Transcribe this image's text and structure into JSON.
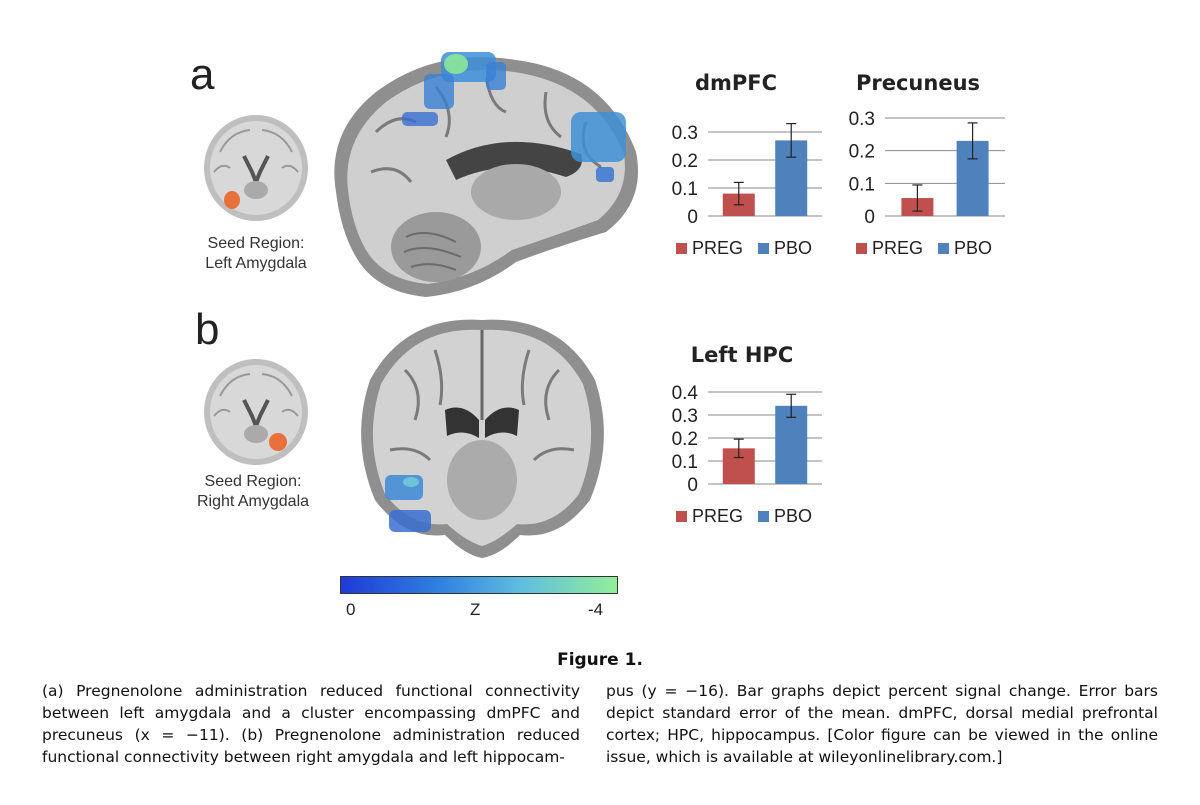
{
  "panels": {
    "a": {
      "letter": "a",
      "seed_label_line1": "Seed Region:",
      "seed_label_line2": "Left Amygdala"
    },
    "b": {
      "letter": "b",
      "seed_label_line1": "Seed Region:",
      "seed_label_line2": "Right Amygdala"
    }
  },
  "colorbar": {
    "label_left": "0",
    "label_mid": "Z",
    "label_right": "-4",
    "colors": [
      "#1f3ad6",
      "#2f7fe0",
      "#5fbde0",
      "#92ef9a"
    ]
  },
  "legend": {
    "preg": "PREG",
    "pbo": "PBO",
    "preg_color": "#c0504d",
    "pbo_color": "#4f81bd"
  },
  "chart_data": [
    {
      "type": "bar",
      "title": "dmPFC",
      "categories": [
        "PREG",
        "PBO"
      ],
      "values": [
        0.08,
        0.27
      ],
      "errors": [
        0.04,
        0.06
      ],
      "yticks": [
        "0",
        "0.1",
        "0.2",
        "0.3"
      ],
      "ylim": [
        0,
        0.3
      ],
      "grid": true,
      "legend": "bottom"
    },
    {
      "type": "bar",
      "title": "Precuneus",
      "categories": [
        "PREG",
        "PBO"
      ],
      "values": [
        0.055,
        0.23
      ],
      "errors": [
        0.04,
        0.055
      ],
      "yticks": [
        "0",
        "0.1",
        "0.2",
        "0.3"
      ],
      "ylim": [
        0,
        0.3
      ],
      "grid": true,
      "legend": "bottom"
    },
    {
      "type": "bar",
      "title": "Left HPC",
      "categories": [
        "PREG",
        "PBO"
      ],
      "values": [
        0.155,
        0.34
      ],
      "errors": [
        0.04,
        0.05
      ],
      "yticks": [
        "0",
        "0.1",
        "0.2",
        "0.3",
        "0.4"
      ],
      "ylim": [
        0,
        0.4
      ],
      "grid": true,
      "legend": "bottom"
    }
  ],
  "figure": {
    "title": "Figure 1.",
    "caption_left": "(a) Pregnenolone administration reduced functional connectivity between left amygdala and a cluster encompassing dmPFC and precuneus (x = −11). (b) Pregnenolone administration reduced functional connectivity between right amygdala and left hippocam-",
    "caption_right": "pus (y = −16). Bar graphs depict percent signal change. Error bars depict standard error of the mean. dmPFC, dorsal medial prefrontal cortex; HPC, hippocampus. [Color figure can be viewed in the online issue, which is available at wileyonlinelibrary.com.]"
  }
}
